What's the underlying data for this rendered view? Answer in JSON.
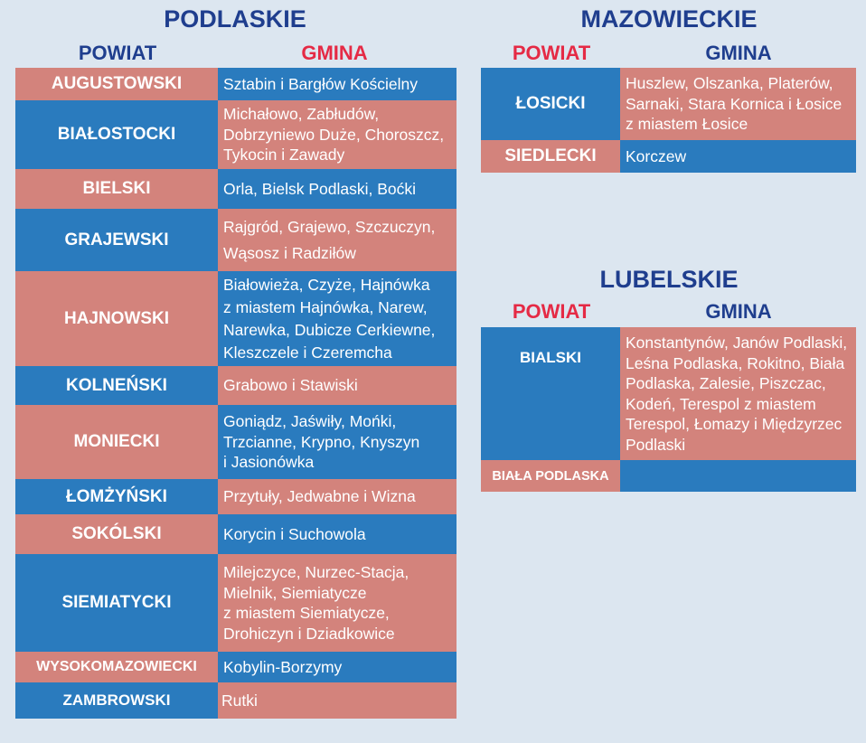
{
  "colors": {
    "pink": "#d3837c",
    "blue": "#2a7bbe",
    "title": "#1f3e8e",
    "header_red": "#e52a45",
    "background": "#dce6f0"
  },
  "podlaskie": {
    "title": "PODLASKIE",
    "powiat_header": "POWIAT",
    "gmina_header": "GMINA",
    "rows": [
      {
        "powiat": "AUGUSTOWSKI",
        "gmina": "Sztabin i Bargłów Kościelny"
      },
      {
        "powiat": "BIAŁOSTOCKI",
        "gmina": "Michałowo, Zabłudów,\nDobrzyniewo Duże, Choroszcz,\nTykocin i Zawady"
      },
      {
        "powiat": "BIELSKI",
        "gmina": "Orla, Bielsk Podlaski, Boćki"
      },
      {
        "powiat": "GRAJEWSKI",
        "gmina": "Rajgród, Grajewo, Szczuczyn,\nWąsosz i Radziłów"
      },
      {
        "powiat": "HAJNOWSKI",
        "gmina": "Białowieża, Czyże, Hajnówka\nz miastem Hajnówka, Narew,\nNarewka, Dubicze Cerkiewne,\nKleszczele i Czeremcha"
      },
      {
        "powiat": "KOLNEŃSKI",
        "gmina": "Grabowo i Stawiski"
      },
      {
        "powiat": "MONIECKI",
        "gmina": "Goniądz, Jaświły, Mońki,\nTrzcianne, Krypno, Knyszyn\n i Jasionówka"
      },
      {
        "powiat": "ŁOMŻYŃSKI",
        "gmina": "Przytuły, Jedwabne i Wizna"
      },
      {
        "powiat": "SOKÓLSKI",
        "gmina": "Korycin i Suchowola"
      },
      {
        "powiat": "SIEMIATYCKI",
        "gmina": "Milejczyce, Nurzec-Stacja,\nMielnik, Siemiatycze\nz miastem Siemiatycze,\nDrohiczyn i Dziadkowice"
      },
      {
        "powiat": "WYSOKOMAZOWIECKI",
        "gmina": "Kobylin-Borzymy"
      },
      {
        "powiat": "ZAMBROWSKI",
        "gmina": "Rutki"
      }
    ]
  },
  "mazowieckie": {
    "title": "MAZOWIECKIE",
    "powiat_header": "POWIAT",
    "gmina_header": "GMINA",
    "rows": [
      {
        "powiat": "ŁOSICKI",
        "gmina": "Huszlew, Olszanka, Platerów,\nSarnaki, Stara Kornica i Łosice\nz miastem Łosice"
      },
      {
        "powiat": "SIEDLECKI",
        "gmina": "Korczew"
      }
    ]
  },
  "lubelskie": {
    "title": "LUBELSKIE",
    "powiat_header": "POWIAT",
    "gmina_header": "GMINA",
    "rows": [
      {
        "powiat": "BIALSKI",
        "gmina": "Konstantynów, Janów Podlaski,\nLeśna Podlaska, Rokitno, Biała\nPodlaska, Zalesie, Piszczac,\nKodeń, Terespol z miastem\nTerespol, Łomazy i Międzyrzec\nPodlaski"
      },
      {
        "powiat": "BIAŁA PODLASKA",
        "gmina": ""
      }
    ]
  }
}
